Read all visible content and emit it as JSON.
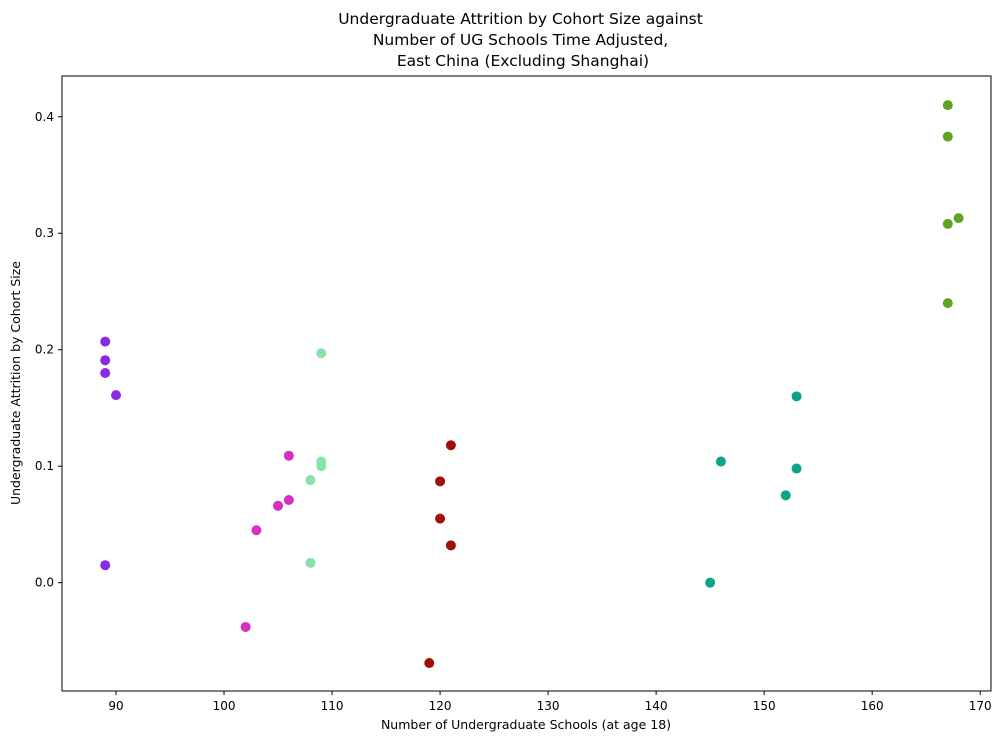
{
  "chart_data": {
    "type": "scatter",
    "title": "Undergraduate Attrition by Cohort Size against\nNumber of UG Schools Time Adjusted,\nEast China (Excluding Shanghai)",
    "title_lines": [
      "Undergraduate Attrition by Cohort Size against",
      "Number of UG Schools Time Adjusted,",
      "East China (Excluding Shanghai)"
    ],
    "xlabel": "Number of Undergraduate Schools (at age 18)",
    "ylabel": "Undergraduate Attrition by Cohort Size",
    "xlim": [
      85,
      171
    ],
    "ylim": [
      -0.093,
      0.435
    ],
    "xticks": [
      90,
      100,
      110,
      120,
      130,
      140,
      150,
      160,
      170
    ],
    "yticks": [
      0.0,
      0.1,
      0.2,
      0.3,
      0.4
    ],
    "xtick_labels": [
      "90",
      "100",
      "110",
      "120",
      "130",
      "140",
      "150",
      "160",
      "170"
    ],
    "ytick_labels": [
      "0.0",
      "0.1",
      "0.2",
      "0.3",
      "0.4"
    ],
    "grid": false,
    "legend": "none",
    "series": [
      {
        "color": "#8a2be2",
        "points": [
          [
            89,
            0.207
          ],
          [
            89,
            0.191
          ],
          [
            89,
            0.18
          ],
          [
            90,
            0.161
          ],
          [
            89,
            0.015
          ]
        ]
      },
      {
        "color": "#d62fc3",
        "points": [
          [
            106,
            0.109
          ],
          [
            106,
            0.071
          ],
          [
            105,
            0.066
          ],
          [
            103,
            0.045
          ],
          [
            102,
            -0.038
          ]
        ]
      },
      {
        "color": "#86e3a9",
        "points": [
          [
            109,
            0.197
          ],
          [
            109,
            0.104
          ],
          [
            109,
            0.1
          ],
          [
            108,
            0.088
          ],
          [
            108,
            0.017
          ]
        ]
      },
      {
        "color": "#a01008",
        "points": [
          [
            121,
            0.118
          ],
          [
            120,
            0.087
          ],
          [
            120,
            0.055
          ],
          [
            121,
            0.032
          ],
          [
            119,
            -0.069
          ]
        ]
      },
      {
        "color": "#0ea387",
        "points": [
          [
            153,
            0.16
          ],
          [
            146,
            0.104
          ],
          [
            153,
            0.098
          ],
          [
            152,
            0.075
          ],
          [
            145,
            0.0
          ]
        ]
      },
      {
        "color": "#5fa323",
        "points": [
          [
            167,
            0.41
          ],
          [
            167,
            0.383
          ],
          [
            168,
            0.313
          ],
          [
            167,
            0.308
          ],
          [
            167,
            0.24
          ]
        ]
      }
    ]
  }
}
